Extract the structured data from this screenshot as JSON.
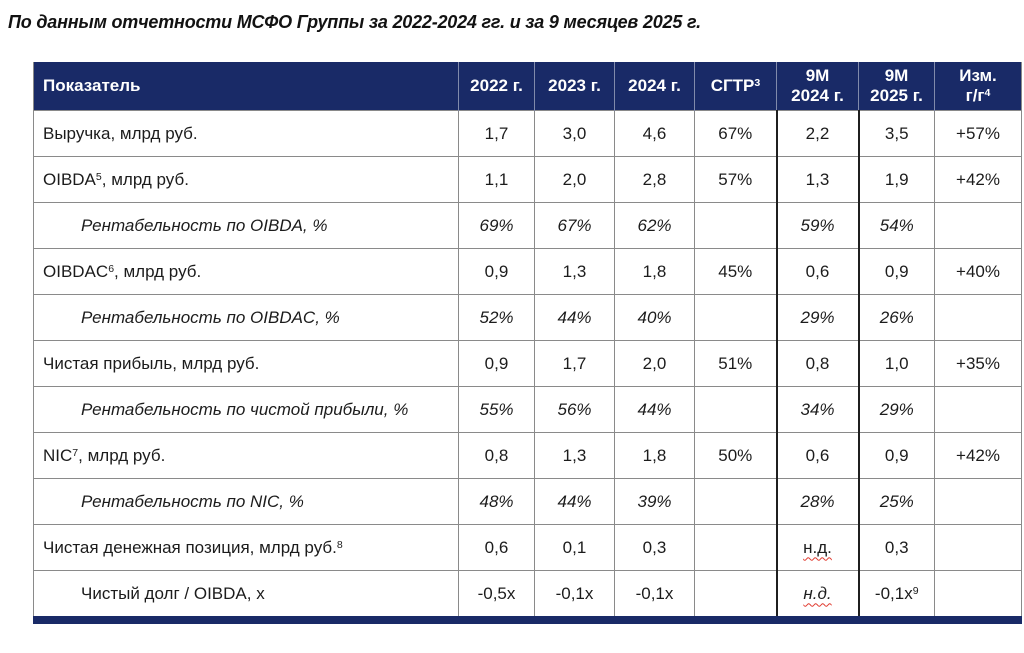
{
  "page": {
    "title": "По данным отчетности МСФО Группы за 2022-2024 гг. и за 9 месяцев 2025 г."
  },
  "colors": {
    "header_bg": "#192a67",
    "header_text": "#ffffff",
    "grid_border": "#8a8a8a",
    "group_border": "#1f1f1f",
    "body_text": "#1c1c1c",
    "spellcheck_squiggle": "#e0392e"
  },
  "table": {
    "header": [
      {
        "line1": "Показатель"
      },
      {
        "line1": "2022 г."
      },
      {
        "line1": "2023 г."
      },
      {
        "line1": "2024 г."
      },
      {
        "line1": "СГТР",
        "sup": "3"
      },
      {
        "line1": "9М",
        "line2": "2024 г."
      },
      {
        "line1": "9М",
        "line2": "2025 г."
      },
      {
        "line1": "Изм.",
        "line2": "г/г",
        "sup": "4"
      }
    ],
    "rows": [
      {
        "label": {
          "pre": "Выручка, млрд руб."
        },
        "indent": false,
        "italic": false,
        "values": [
          "1,7",
          "3,0",
          "4,6",
          "67%",
          "2,2",
          "3,5",
          "+57%"
        ]
      },
      {
        "label": {
          "pre": "OIBDA",
          "sup": "5",
          "post": ", млрд руб."
        },
        "indent": false,
        "italic": false,
        "values": [
          "1,1",
          "2,0",
          "2,8",
          "57%",
          "1,3",
          "1,9",
          "+42%"
        ]
      },
      {
        "label": {
          "pre": "Рентабельность по OIBDA, %"
        },
        "indent": true,
        "italic": true,
        "values": [
          "69%",
          "67%",
          "62%",
          "",
          "59%",
          "54%",
          ""
        ]
      },
      {
        "label": {
          "pre": "OIBDAC",
          "sup": "6",
          "post": ", млрд руб."
        },
        "indent": false,
        "italic": false,
        "values": [
          "0,9",
          "1,3",
          "1,8",
          "45%",
          "0,6",
          "0,9",
          "+40%"
        ]
      },
      {
        "label": {
          "pre": "Рентабельность по OIBDAC, %"
        },
        "indent": true,
        "italic": true,
        "values": [
          "52%",
          "44%",
          "40%",
          "",
          "29%",
          "26%",
          ""
        ]
      },
      {
        "label": {
          "pre": "Чистая прибыль, млрд руб."
        },
        "indent": false,
        "italic": false,
        "values": [
          "0,9",
          "1,7",
          "2,0",
          "51%",
          "0,8",
          "1,0",
          "+35%"
        ]
      },
      {
        "label": {
          "pre": "Рентабельность по чистой прибыли, %"
        },
        "indent": true,
        "italic": true,
        "values": [
          "55%",
          "56%",
          "44%",
          "",
          "34%",
          "29%",
          ""
        ]
      },
      {
        "label": {
          "pre": "NIC",
          "sup": "7",
          "post": ", млрд руб."
        },
        "indent": false,
        "italic": false,
        "values": [
          "0,8",
          "1,3",
          "1,8",
          "50%",
          "0,6",
          "0,9",
          "+42%"
        ]
      },
      {
        "label": {
          "pre": "Рентабельность по NIC, %"
        },
        "indent": true,
        "italic": true,
        "values": [
          "48%",
          "44%",
          "39%",
          "",
          "28%",
          "25%",
          ""
        ]
      },
      {
        "label": {
          "pre": "Чистая денежная позиция, млрд руб.",
          "sup": "8"
        },
        "indent": false,
        "italic": false,
        "values": [
          "0,6",
          "0,1",
          "0,3",
          "",
          {
            "text": "н.д.",
            "squiggle": true
          },
          "0,3",
          ""
        ]
      },
      {
        "label": {
          "pre": "Чистый долг / OIBDA, x"
        },
        "indent": true,
        "italic": false,
        "values": [
          "-0,5x",
          "-0,1x",
          "-0,1x",
          "",
          {
            "text": "н.д.",
            "italic": true,
            "squiggle": true
          },
          {
            "text": "-0,1x",
            "sup": "9"
          },
          ""
        ]
      }
    ]
  }
}
